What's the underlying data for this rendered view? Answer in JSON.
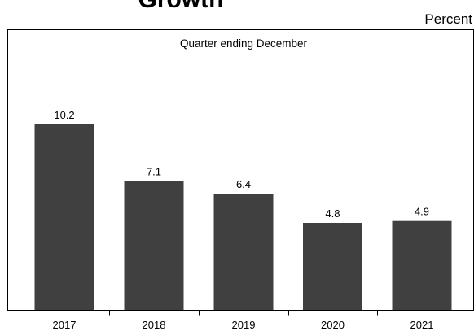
{
  "chart_data": {
    "type": "bar",
    "title": "Growth",
    "subtitle": "Quarter ending December",
    "ylabel": "Percent",
    "xlabel": "",
    "categories": [
      "2017",
      "2018",
      "2019",
      "2020",
      "2021"
    ],
    "values": [
      10.2,
      7.1,
      6.4,
      4.8,
      4.9
    ],
    "value_labels": [
      "10.2",
      "7.1",
      "6.4",
      "4.8",
      "4.9"
    ],
    "ylim": [
      0,
      15.4
    ],
    "grid": false,
    "legend": "none",
    "colors": {
      "bar": "#404040",
      "axis": "#000000",
      "frame": "#000000",
      "background": "#ffffff"
    }
  }
}
